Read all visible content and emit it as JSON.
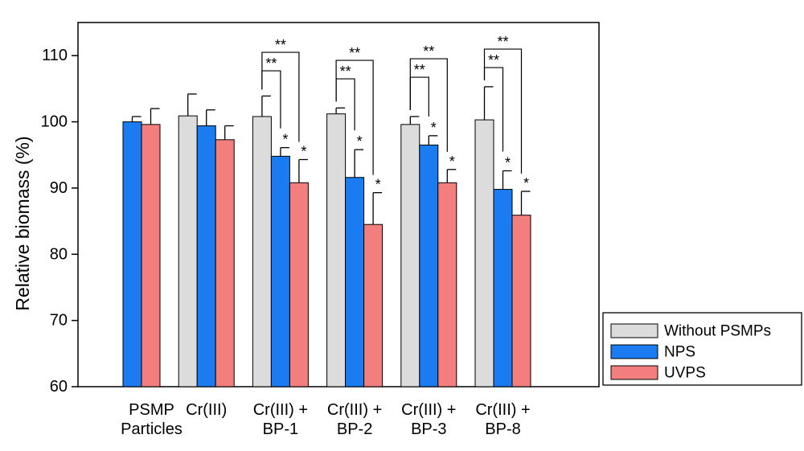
{
  "chart_data": {
    "type": "bar",
    "title": "",
    "xlabel": "",
    "ylabel": "Relative biomass (%)",
    "ylim": [
      60,
      115
    ],
    "yticks": [
      60,
      70,
      80,
      90,
      100,
      110
    ],
    "grid": false,
    "legend_position": "bottom-right, outside plot",
    "categories": [
      [
        "PSMP",
        "Particles"
      ],
      [
        "Cr(III)"
      ],
      [
        "Cr(III) +",
        "BP-1"
      ],
      [
        "Cr(III) +",
        "BP-2"
      ],
      [
        "Cr(III) +",
        "BP-3"
      ],
      [
        "Cr(III) +",
        "BP-8"
      ]
    ],
    "series": [
      {
        "name": "Without PSMPs",
        "color": "#dcdcdc",
        "values": [
          null,
          100.9,
          100.8,
          101.2,
          99.6,
          100.3
        ],
        "errors": [
          null,
          3.3,
          3.1,
          0.9,
          1.2,
          5.0
        ]
      },
      {
        "name": "NPS",
        "color": "#1a7cf0",
        "values": [
          100.0,
          99.4,
          94.8,
          91.6,
          96.5,
          89.8
        ],
        "errors": [
          0.8,
          2.4,
          1.3,
          4.2,
          1.4,
          2.8
        ]
      },
      {
        "name": "UVPS",
        "color": "#f27e7e",
        "values": [
          99.6,
          97.3,
          90.8,
          84.5,
          90.8,
          85.9
        ],
        "errors": [
          2.4,
          2.1,
          3.5,
          4.8,
          2.0,
          3.6
        ]
      }
    ],
    "bar_stars": [
      [
        null,
        null,
        null
      ],
      [
        null,
        null,
        null
      ],
      [
        null,
        "*",
        "*"
      ],
      [
        null,
        "*",
        "*"
      ],
      [
        null,
        "*",
        "*"
      ],
      [
        null,
        "*",
        "*"
      ]
    ],
    "brackets": [
      {
        "group": 2,
        "from": 0,
        "to": 1,
        "label": "**",
        "level": 1
      },
      {
        "group": 2,
        "from": 0,
        "to": 2,
        "label": "**",
        "level": 2
      },
      {
        "group": 3,
        "from": 0,
        "to": 1,
        "label": "**",
        "level": 1
      },
      {
        "group": 3,
        "from": 0,
        "to": 2,
        "label": "**",
        "level": 2
      },
      {
        "group": 4,
        "from": 0,
        "to": 1,
        "label": "**",
        "level": 1
      },
      {
        "group": 4,
        "from": 0,
        "to": 2,
        "label": "**",
        "level": 2
      },
      {
        "group": 5,
        "from": 0,
        "to": 1,
        "label": "**",
        "level": 1
      },
      {
        "group": 5,
        "from": 0,
        "to": 2,
        "label": "**",
        "level": 2
      }
    ]
  }
}
